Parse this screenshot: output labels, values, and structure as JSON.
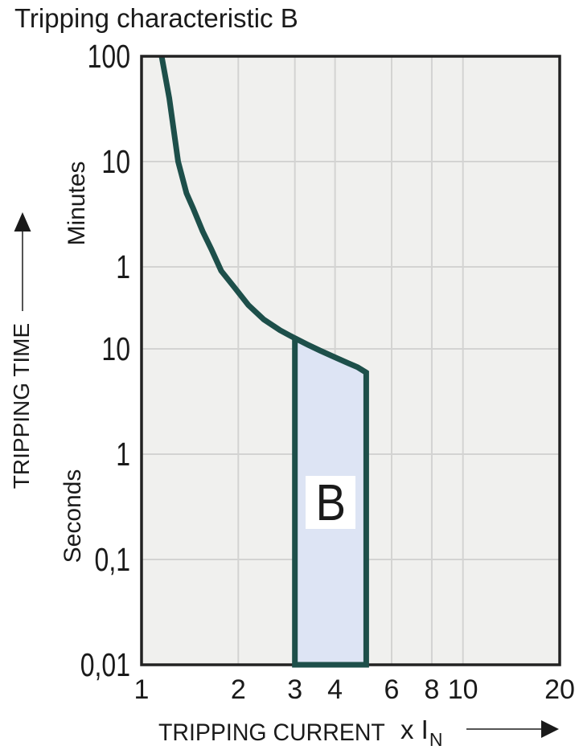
{
  "title": "Tripping characteristic B",
  "colors": {
    "curve": "#1d4f4a",
    "region_fill": "#dde4f4",
    "plot_background": "#f0f0ee",
    "gridline": "#d3d3d2",
    "plot_border": "#222222",
    "arrow_line": "#555555",
    "arrow_head": "#1a1a1a",
    "text": "#1a1a1a",
    "region_label_background": "#ffffff"
  },
  "y_axis": {
    "title": "TRIPPING TIME",
    "upper_unit": "Minutes",
    "lower_unit": "Seconds",
    "tick_labels": [
      "100",
      "10",
      "1",
      "10",
      "1",
      "0,1",
      "0,01"
    ],
    "tick_seconds": [
      6000,
      600,
      60,
      10,
      1,
      0.1,
      0.01
    ]
  },
  "x_axis": {
    "title": "TRIPPING CURRENT",
    "multiplier": "x I",
    "multiplier_sub": "N",
    "tick_labels": [
      "1",
      "2",
      "3",
      "4",
      "6",
      "8",
      "10",
      "20"
    ],
    "tick_values": [
      1,
      2,
      3,
      4,
      6,
      8,
      10,
      20
    ]
  },
  "chart_data": {
    "type": "line",
    "title": "Tripping characteristic B",
    "x_scale": "log",
    "y_scale": "log",
    "xlim": [
      1,
      20
    ],
    "ylim_seconds": [
      0.01,
      6000
    ],
    "xlabel": "TRIPPING CURRENT (x In)",
    "ylabel": "TRIPPING TIME (minutes / seconds)",
    "grid": true,
    "series": [
      {
        "name": "B tripping characteristic curve",
        "points": [
          [
            1.155,
            6000
          ],
          [
            1.22,
            2400
          ],
          [
            1.3,
            600
          ],
          [
            1.38,
            300
          ],
          [
            1.45,
            213
          ],
          [
            1.55,
            130
          ],
          [
            1.65,
            88
          ],
          [
            1.77,
            55
          ],
          [
            1.95,
            38
          ],
          [
            2.15,
            26
          ],
          [
            2.4,
            19
          ],
          [
            2.7,
            15
          ],
          [
            3.0,
            12.6
          ],
          [
            3.3,
            10.9
          ],
          [
            3.6,
            9.6
          ],
          [
            4.0,
            8.3
          ],
          [
            4.4,
            7.3
          ],
          [
            4.7,
            6.7
          ],
          [
            5.0,
            5.95
          ]
        ]
      }
    ],
    "region": {
      "label": "B",
      "x_min": 3,
      "x_max": 5,
      "bottom_seconds": 0.01,
      "top_follows_curve": true,
      "label_center": [
        3.87,
        0.35
      ]
    }
  }
}
